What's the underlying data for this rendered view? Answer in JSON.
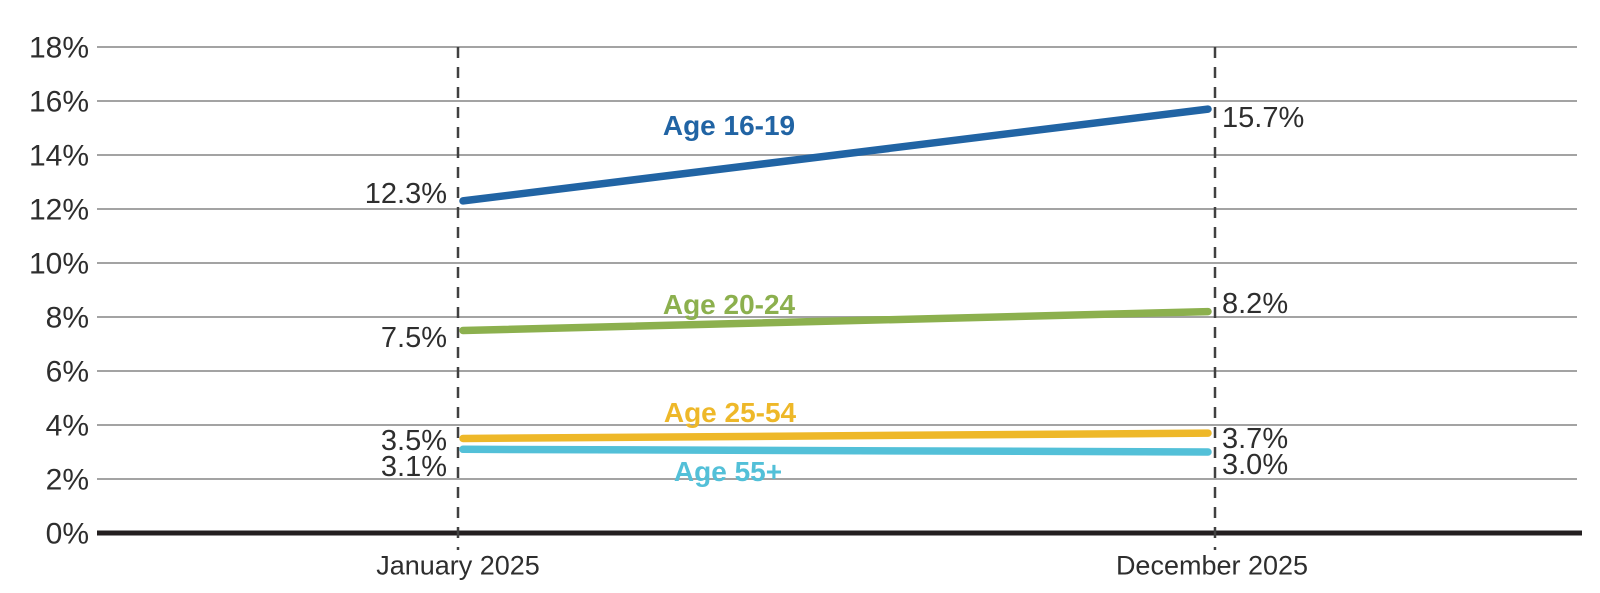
{
  "chart_data": {
    "type": "line",
    "title": "",
    "xlabel": "",
    "ylabel": "",
    "x_categories": [
      "January 2025",
      "December 2025"
    ],
    "ylim": [
      0,
      18
    ],
    "grid": true,
    "legend_position": "inline-labels-on-lines",
    "y_ticks": [
      {
        "value": 18,
        "label": "18%"
      },
      {
        "value": 16,
        "label": "16%"
      },
      {
        "value": 14,
        "label": "14%"
      },
      {
        "value": 12,
        "label": "12%"
      },
      {
        "value": 10,
        "label": "10%"
      },
      {
        "value": 8,
        "label": "8%"
      },
      {
        "value": 6,
        "label": "6%"
      },
      {
        "value": 4,
        "label": "4%"
      },
      {
        "value": 2,
        "label": "2%"
      },
      {
        "value": 0,
        "label": "0%"
      }
    ],
    "series": [
      {
        "name": "Age 16-19",
        "color": "#2164A4",
        "values": [
          12.3,
          15.7
        ],
        "value_labels": [
          "12.3%",
          "15.7%"
        ]
      },
      {
        "name": "Age 20-24",
        "color": "#8CB04E",
        "values": [
          7.5,
          8.2
        ],
        "value_labels": [
          "7.5%",
          "8.2%"
        ]
      },
      {
        "name": "Age 25-54",
        "color": "#EEB829",
        "values": [
          3.5,
          3.7
        ],
        "value_labels": [
          "3.5%",
          "3.7%"
        ]
      },
      {
        "name": "Age 55+",
        "color": "#53C0D8",
        "values": [
          3.1,
          3.0
        ],
        "value_labels": [
          "3.1%",
          "3.0%"
        ]
      }
    ],
    "colors": {
      "gridline": "#A3A3A3",
      "axis_line": "#231F20",
      "dashed_guide": "#404040",
      "label_text": "#2E2E2E"
    }
  }
}
